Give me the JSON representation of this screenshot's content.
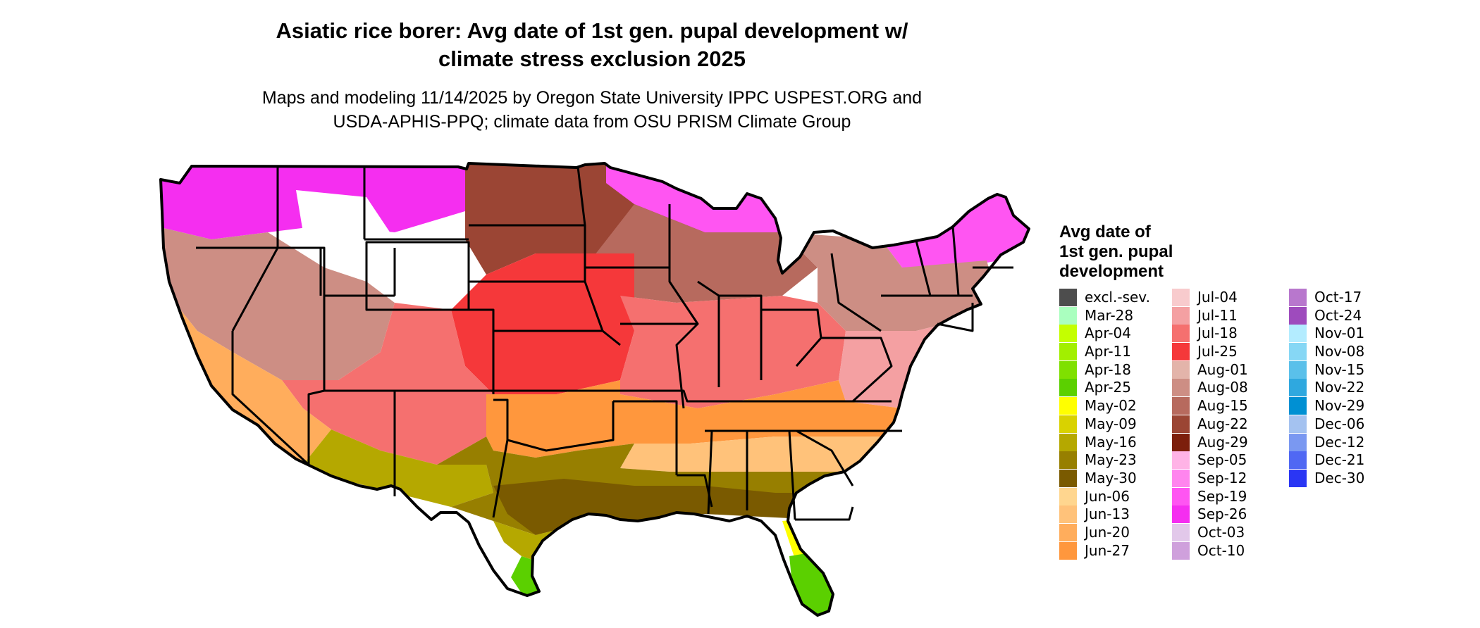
{
  "title": {
    "line1": "Asiatic rice borer: Avg date of 1st gen. pupal development w/",
    "line2": "climate stress exclusion 2025"
  },
  "subtitle": {
    "line1": "Maps and modeling 11/14/2025 by Oregon State University IPPC USPEST.ORG and",
    "line2": "USDA-APHIS-PPQ; climate data from OSU PRISM Climate Group"
  },
  "legend": {
    "title_line1": "Avg date of",
    "title_line2": "1st gen. pupal",
    "title_line3": "development",
    "columns": [
      [
        {
          "label": "excl.-sev.",
          "color": "#4d4d4d"
        },
        {
          "label": "Mar-28",
          "color": "#aaffbf"
        },
        {
          "label": "Apr-04",
          "color": "#c4ff00"
        },
        {
          "label": "Apr-11",
          "color": "#a2ef00"
        },
        {
          "label": "Apr-18",
          "color": "#7fe000"
        },
        {
          "label": "Apr-25",
          "color": "#5bd000"
        },
        {
          "label": "May-02",
          "color": "#ffff00"
        },
        {
          "label": "May-09",
          "color": "#d9d200"
        },
        {
          "label": "May-16",
          "color": "#b5a800"
        },
        {
          "label": "May-23",
          "color": "#977f00"
        },
        {
          "label": "May-30",
          "color": "#7a5a00"
        },
        {
          "label": "Jun-06",
          "color": "#ffd68f"
        },
        {
          "label": "Jun-13",
          "color": "#ffc27a"
        },
        {
          "label": "Jun-20",
          "color": "#ffad5c"
        },
        {
          "label": "Jun-27",
          "color": "#ff973d"
        }
      ],
      [
        {
          "label": "Jul-04",
          "color": "#f8cbcd"
        },
        {
          "label": "Jul-11",
          "color": "#f4a0a2"
        },
        {
          "label": "Jul-18",
          "color": "#f5706f"
        },
        {
          "label": "Jul-25",
          "color": "#f5383a"
        },
        {
          "label": "Aug-01",
          "color": "#e3b4aa"
        },
        {
          "label": "Aug-08",
          "color": "#cd8e84"
        },
        {
          "label": "Aug-15",
          "color": "#b76a5e"
        },
        {
          "label": "Aug-22",
          "color": "#9b4534"
        },
        {
          "label": "Aug-29",
          "color": "#7c1f0c"
        },
        {
          "label": "Sep-05",
          "color": "#ffb3e6"
        },
        {
          "label": "Sep-12",
          "color": "#ff85ee"
        },
        {
          "label": "Sep-19",
          "color": "#ff55f2"
        },
        {
          "label": "Sep-26",
          "color": "#f52ef0"
        },
        {
          "label": "Oct-03",
          "color": "#e2c8ea"
        },
        {
          "label": "Oct-10",
          "color": "#cfa0dc"
        }
      ],
      [
        {
          "label": "Oct-17",
          "color": "#b877cd"
        },
        {
          "label": "Oct-24",
          "color": "#9e4bbd"
        },
        {
          "label": "Nov-01",
          "color": "#b3ecff"
        },
        {
          "label": "Nov-08",
          "color": "#86d7f5"
        },
        {
          "label": "Nov-15",
          "color": "#5ac0ea"
        },
        {
          "label": "Nov-22",
          "color": "#2fa8df"
        },
        {
          "label": "Nov-29",
          "color": "#0090d3"
        },
        {
          "label": "Dec-06",
          "color": "#a4c2f0"
        },
        {
          "label": "Dec-12",
          "color": "#7a98f1"
        },
        {
          "label": "Dec-21",
          "color": "#5068f3"
        },
        {
          "label": "Dec-30",
          "color": "#2a36f4"
        }
      ]
    ]
  },
  "map_regions": [
    {
      "region": "pacific-northwest-mountains",
      "color": "#f52ef0"
    },
    {
      "region": "northern-rockies-highlands",
      "color": "#ffffff"
    },
    {
      "region": "northern-plains",
      "color": "#9b4534"
    },
    {
      "region": "north-central",
      "color": "#b76a5e"
    },
    {
      "region": "great-lakes-north",
      "color": "#ff55f2"
    },
    {
      "region": "northeast-north",
      "color": "#ff55f2"
    },
    {
      "region": "northeast",
      "color": "#cd8e84"
    },
    {
      "region": "central-plains",
      "color": "#f5383a"
    },
    {
      "region": "midwest-central",
      "color": "#f5706f"
    },
    {
      "region": "mid-atlantic",
      "color": "#f4a0a2"
    },
    {
      "region": "great-basin",
      "color": "#cd8e84"
    },
    {
      "region": "southwest-plateau",
      "color": "#f5706f"
    },
    {
      "region": "california-valleys",
      "color": "#ffad5c"
    },
    {
      "region": "southern-tier",
      "color": "#ff973d"
    },
    {
      "region": "southeast",
      "color": "#ffc27a"
    },
    {
      "region": "gulf-coast",
      "color": "#977f00"
    },
    {
      "region": "gulf-coast-deep",
      "color": "#7a5a00"
    },
    {
      "region": "south-texas",
      "color": "#b5a800"
    },
    {
      "region": "lower-rio-grande",
      "color": "#5bd000"
    },
    {
      "region": "south-florida",
      "color": "#ffff00"
    },
    {
      "region": "florida-tip",
      "color": "#5bd000"
    },
    {
      "region": "low-desert",
      "color": "#b5a800"
    }
  ]
}
